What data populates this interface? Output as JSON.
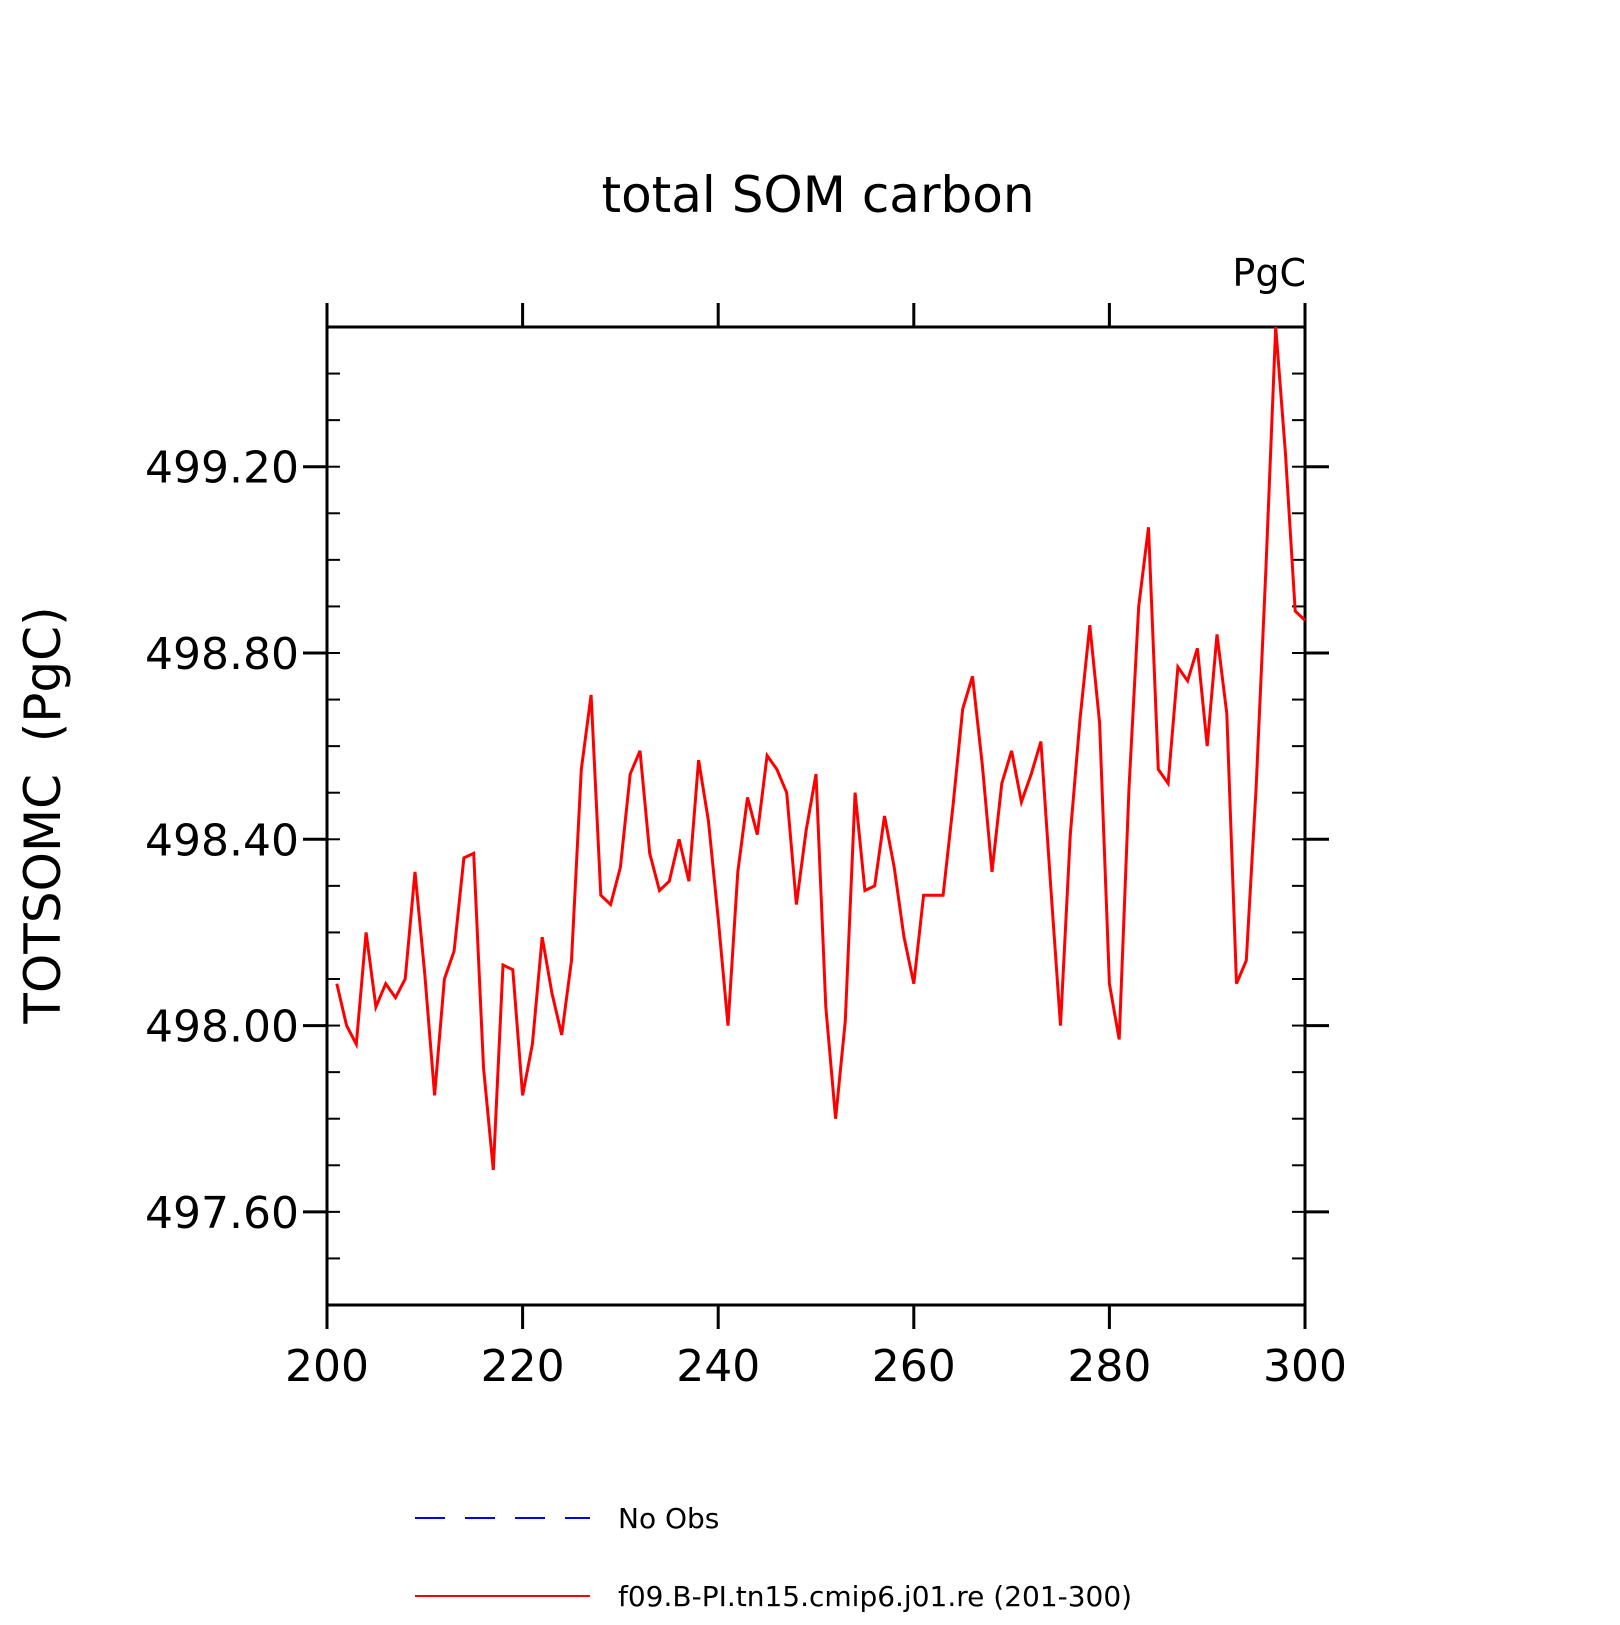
{
  "chart_data": {
    "type": "line",
    "title": "total SOM carbon",
    "units_label": "PgC",
    "ylabel": "TOTSOMC  (PgC)",
    "xlabel": "",
    "xlim": [
      200,
      300
    ],
    "ylim": [
      497.4,
      499.5
    ],
    "x_ticks": [
      200,
      220,
      240,
      260,
      280,
      300
    ],
    "x_tick_labels": [
      "200",
      "220",
      "240",
      "260",
      "280",
      "300"
    ],
    "y_ticks": [
      497.6,
      498.0,
      498.4,
      498.8,
      499.2
    ],
    "y_tick_labels": [
      "497.60",
      "498.00",
      "498.40",
      "498.80",
      "499.20"
    ],
    "grid": false,
    "legend_position": "bottom",
    "legend": [
      {
        "name": "No Obs",
        "color": "#0000ff",
        "style": "dashed"
      },
      {
        "name": "f09.B-PI.tn15.cmip6.j01.re (201-300)",
        "color": "#ff0000",
        "style": "solid"
      }
    ],
    "series": [
      {
        "name": "f09.B-PI.tn15.cmip6.j01.re (201-300)",
        "color": "#ff0000",
        "x": [
          201,
          202,
          203,
          204,
          205,
          206,
          207,
          208,
          209,
          210,
          211,
          212,
          213,
          214,
          215,
          216,
          217,
          218,
          219,
          220,
          221,
          222,
          223,
          224,
          225,
          226,
          227,
          228,
          229,
          230,
          231,
          232,
          233,
          234,
          235,
          236,
          237,
          238,
          239,
          240,
          241,
          242,
          243,
          244,
          245,
          246,
          247,
          248,
          249,
          250,
          251,
          252,
          253,
          254,
          255,
          256,
          257,
          258,
          259,
          260,
          261,
          262,
          263,
          264,
          265,
          266,
          267,
          268,
          269,
          270,
          271,
          272,
          273,
          274,
          275,
          276,
          277,
          278,
          279,
          280,
          281,
          282,
          283,
          284,
          285,
          286,
          287,
          288,
          289,
          290,
          291,
          292,
          293,
          294,
          295,
          296,
          297,
          298,
          299,
          300
        ],
        "values": [
          498.09,
          498.0,
          497.96,
          498.2,
          498.04,
          498.09,
          498.06,
          498.1,
          498.33,
          498.11,
          497.85,
          498.1,
          498.16,
          498.36,
          498.37,
          497.91,
          497.69,
          498.13,
          498.12,
          497.85,
          497.96,
          498.19,
          498.07,
          497.98,
          498.14,
          498.55,
          498.71,
          498.28,
          498.26,
          498.34,
          498.54,
          498.59,
          498.37,
          498.29,
          498.31,
          498.4,
          498.31,
          498.57,
          498.44,
          498.23,
          498.0,
          498.33,
          498.49,
          498.41,
          498.58,
          498.55,
          498.5,
          498.26,
          498.42,
          498.54,
          498.04,
          497.8,
          498.01,
          498.5,
          498.29,
          498.3,
          498.45,
          498.34,
          498.19,
          498.09,
          498.28,
          498.28,
          498.28,
          498.47,
          498.68,
          498.75,
          498.56,
          498.33,
          498.52,
          498.59,
          498.48,
          498.54,
          498.61,
          498.3,
          498.0,
          498.41,
          498.66,
          498.86,
          498.65,
          498.09,
          497.97,
          498.51,
          498.9,
          499.07,
          498.55,
          498.52,
          498.77,
          498.74,
          498.81,
          498.6,
          498.84,
          498.67,
          498.09,
          498.14,
          498.51,
          498.98,
          499.5,
          499.23,
          498.89,
          498.87
        ]
      }
    ]
  }
}
